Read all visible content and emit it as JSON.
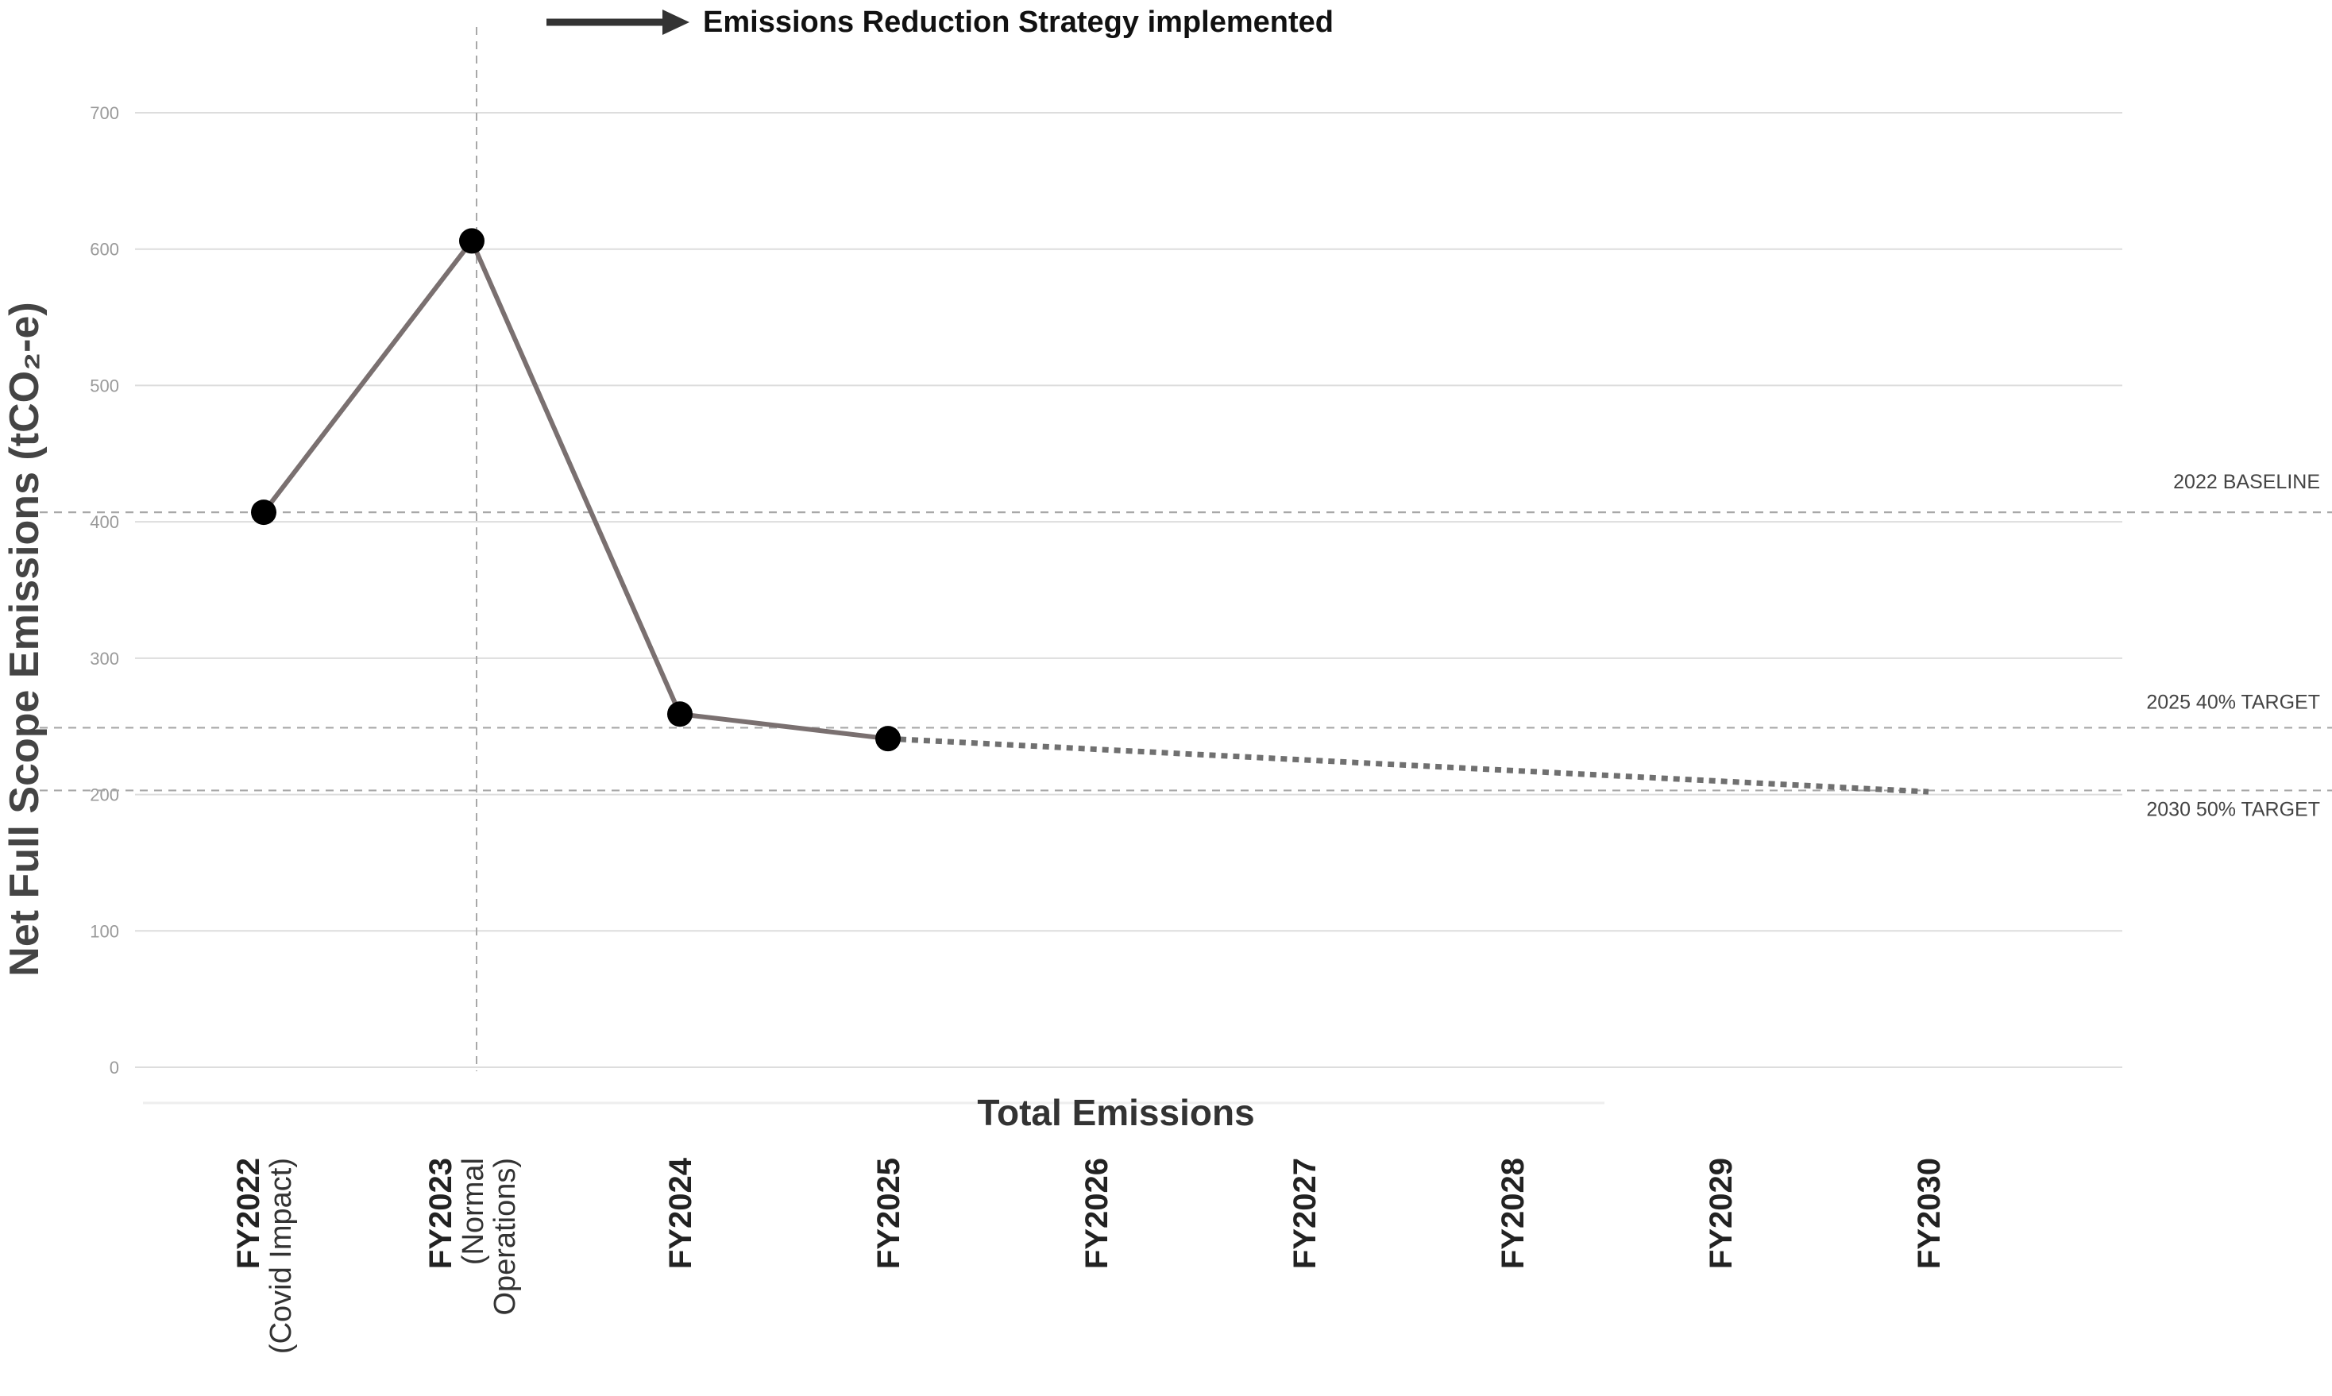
{
  "chart_data": {
    "type": "line",
    "title": "",
    "xlabel": "Total Emissions",
    "ylabel": "Net Full Scope Emissions (tCO₂-e)",
    "ylim": [
      0,
      700
    ],
    "yticks": [
      0,
      100,
      200,
      300,
      400,
      500,
      600,
      700
    ],
    "grid": true,
    "categories": [
      {
        "label": "FY2022",
        "sub": [
          "(Covid Impact)"
        ]
      },
      {
        "label": "FY2023",
        "sub": [
          "(Normal",
          "Operations)"
        ]
      },
      {
        "label": "FY2024",
        "sub": []
      },
      {
        "label": "FY2025",
        "sub": []
      },
      {
        "label": "FY2026",
        "sub": []
      },
      {
        "label": "FY2027",
        "sub": []
      },
      {
        "label": "FY2028",
        "sub": []
      },
      {
        "label": "FY2029",
        "sub": []
      },
      {
        "label": "FY2030",
        "sub": []
      }
    ],
    "series": [
      {
        "values": [
          407,
          606,
          259,
          241,
          null,
          null,
          null,
          null,
          null
        ],
        "style": "solid",
        "color": "#7a7070"
      },
      {
        "values": [
          null,
          null,
          null,
          241,
          null,
          null,
          null,
          null,
          202
        ],
        "style": "dotted",
        "color": "#707070"
      }
    ],
    "reference_lines": [
      {
        "label": "2022 BASELINE",
        "value": 407
      },
      {
        "label": "2025 40% TARGET",
        "value": 249
      },
      {
        "label": "2030 50% TARGET",
        "value": 203
      }
    ],
    "annotation": {
      "text": "Emissions Reduction Strategy implemented",
      "at_category": "FY2023"
    },
    "colors": {
      "line": "#7a7070",
      "marker": "#000000",
      "grid": "#dddddd",
      "reference": "#a8a8a8",
      "arrow": "#333333"
    }
  }
}
